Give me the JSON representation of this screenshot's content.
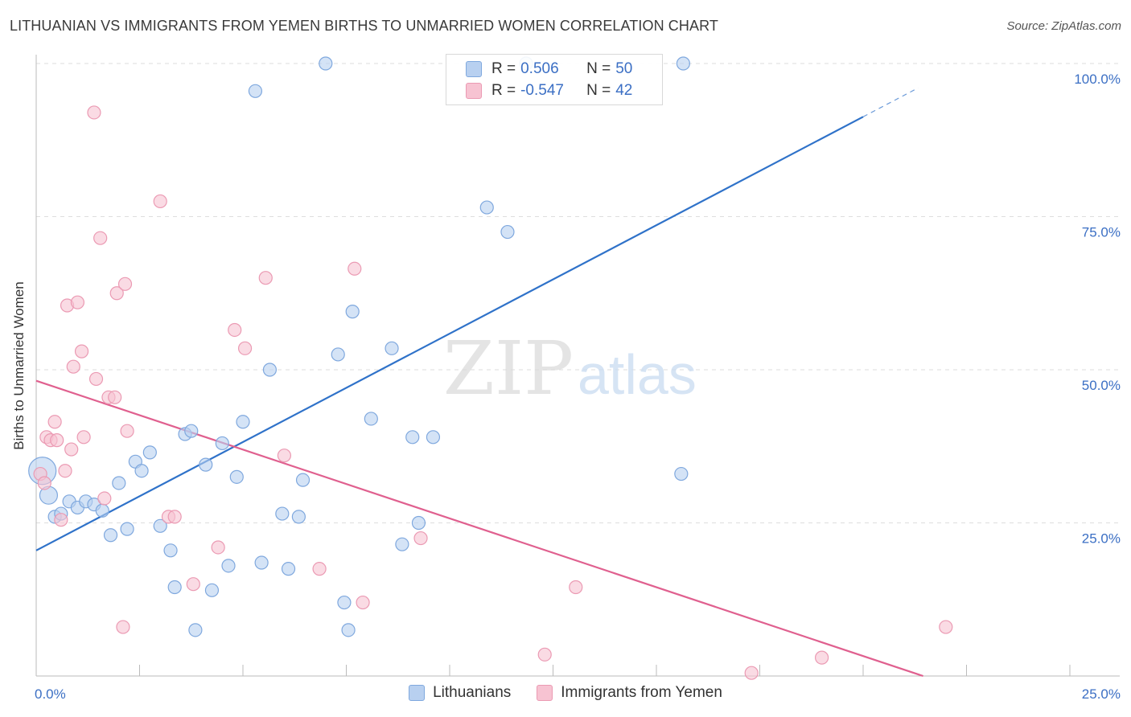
{
  "title": "LITHUANIAN VS IMMIGRANTS FROM YEMEN BIRTHS TO UNMARRIED WOMEN CORRELATION CHART",
  "source": "Source: ZipAtlas.com",
  "watermark": {
    "zip": "ZIP",
    "atlas": "atlas"
  },
  "legend_stats": {
    "r_label": "R =",
    "n_label": "N =",
    "rows": [
      {
        "r": "0.506",
        "n": "50"
      },
      {
        "r": "-0.547",
        "n": "42"
      }
    ]
  },
  "colors": {
    "blue_fill": "#b8d0f0",
    "blue_stroke": "#7fa8de",
    "blue_line": "#2f72c9",
    "pink_fill": "#f7c3d2",
    "pink_stroke": "#eb9ab3",
    "pink_line": "#e0608f",
    "axis_tick_text": "#3b6fc4",
    "grid": "#dedede"
  },
  "chart_data": {
    "type": "scatter",
    "title": "LITHUANIAN VS IMMIGRANTS FROM YEMEN BIRTHS TO UNMARRIED WOMEN CORRELATION CHART",
    "xlabel": "",
    "ylabel": "Births to Unmarried Women",
    "xlim": [
      0,
      25
    ],
    "ylim": [
      0,
      100
    ],
    "x_tick_labels": [
      "0.0%",
      "25.0%"
    ],
    "y_tick_labels": [
      "25.0%",
      "50.0%",
      "75.0%",
      "100.0%"
    ],
    "y_ticks": [
      25,
      50,
      75,
      100
    ],
    "grid": true,
    "legend_position": "bottom",
    "series": [
      {
        "name": "Lithuanians",
        "r": 0.506,
        "n": 50,
        "trend": {
          "x": [
            0,
            25
          ],
          "y": [
            20.5,
            109
          ],
          "solid_until_x": 20
        },
        "points": [
          {
            "x": 0.15,
            "y": 33.5,
            "big": true
          },
          {
            "x": 0.3,
            "y": 29.5,
            "big": true
          },
          {
            "x": 0.45,
            "y": 26.0
          },
          {
            "x": 0.6,
            "y": 26.5
          },
          {
            "x": 0.8,
            "y": 28.5
          },
          {
            "x": 1.0,
            "y": 27.5
          },
          {
            "x": 1.2,
            "y": 28.5
          },
          {
            "x": 1.4,
            "y": 28.0
          },
          {
            "x": 1.6,
            "y": 27.0
          },
          {
            "x": 1.8,
            "y": 23.0
          },
          {
            "x": 2.0,
            "y": 31.5
          },
          {
            "x": 2.2,
            "y": 24.0
          },
          {
            "x": 2.4,
            "y": 35.0
          },
          {
            "x": 2.55,
            "y": 33.5
          },
          {
            "x": 2.75,
            "y": 36.5
          },
          {
            "x": 3.0,
            "y": 24.5
          },
          {
            "x": 3.25,
            "y": 20.5
          },
          {
            "x": 3.35,
            "y": 14.5
          },
          {
            "x": 3.6,
            "y": 39.5
          },
          {
            "x": 3.75,
            "y": 40.0
          },
          {
            "x": 3.85,
            "y": 7.5
          },
          {
            "x": 4.1,
            "y": 34.5
          },
          {
            "x": 4.25,
            "y": 14.0
          },
          {
            "x": 4.5,
            "y": 38.0
          },
          {
            "x": 4.65,
            "y": 18.0
          },
          {
            "x": 4.85,
            "y": 32.5
          },
          {
            "x": 5.0,
            "y": 41.5
          },
          {
            "x": 5.3,
            "y": 95.5
          },
          {
            "x": 5.45,
            "y": 18.5
          },
          {
            "x": 5.65,
            "y": 50.0
          },
          {
            "x": 5.95,
            "y": 26.5
          },
          {
            "x": 6.1,
            "y": 17.5
          },
          {
            "x": 6.35,
            "y": 26.0
          },
          {
            "x": 6.45,
            "y": 32.0
          },
          {
            "x": 7.0,
            "y": 100.0
          },
          {
            "x": 7.3,
            "y": 52.5
          },
          {
            "x": 7.45,
            "y": 12.0
          },
          {
            "x": 7.55,
            "y": 7.5
          },
          {
            "x": 7.65,
            "y": 59.5
          },
          {
            "x": 8.1,
            "y": 42.0
          },
          {
            "x": 8.6,
            "y": 53.5
          },
          {
            "x": 8.85,
            "y": 21.5
          },
          {
            "x": 9.1,
            "y": 39.0
          },
          {
            "x": 9.25,
            "y": 25.0
          },
          {
            "x": 9.6,
            "y": 39.0
          },
          {
            "x": 10.9,
            "y": 76.5
          },
          {
            "x": 11.4,
            "y": 72.5
          },
          {
            "x": 11.85,
            "y": 100.0
          },
          {
            "x": 15.6,
            "y": 33.0
          },
          {
            "x": 15.65,
            "y": 100.0
          }
        ]
      },
      {
        "name": "Immigrants from Yemen",
        "r": -0.547,
        "n": 42,
        "trend": {
          "x": [
            0,
            21.45
          ],
          "y": [
            48.2,
            0
          ]
        },
        "points": [
          {
            "x": 0.1,
            "y": 33.0
          },
          {
            "x": 0.2,
            "y": 31.5
          },
          {
            "x": 0.25,
            "y": 39.0
          },
          {
            "x": 0.35,
            "y": 38.5
          },
          {
            "x": 0.45,
            "y": 41.5
          },
          {
            "x": 0.5,
            "y": 38.5
          },
          {
            "x": 0.6,
            "y": 25.5
          },
          {
            "x": 0.7,
            "y": 33.5
          },
          {
            "x": 0.75,
            "y": 60.5
          },
          {
            "x": 0.85,
            "y": 37.0
          },
          {
            "x": 0.9,
            "y": 50.5
          },
          {
            "x": 1.0,
            "y": 61.0
          },
          {
            "x": 1.1,
            "y": 53.0
          },
          {
            "x": 1.15,
            "y": 39.0
          },
          {
            "x": 1.4,
            "y": 92.0
          },
          {
            "x": 1.45,
            "y": 48.5
          },
          {
            "x": 1.55,
            "y": 71.5
          },
          {
            "x": 1.65,
            "y": 29.0
          },
          {
            "x": 1.75,
            "y": 45.5
          },
          {
            "x": 1.9,
            "y": 45.5
          },
          {
            "x": 1.95,
            "y": 62.5
          },
          {
            "x": 2.1,
            "y": 8.0
          },
          {
            "x": 2.15,
            "y": 64.0
          },
          {
            "x": 2.2,
            "y": 40.0
          },
          {
            "x": 3.0,
            "y": 77.5
          },
          {
            "x": 3.2,
            "y": 26.0
          },
          {
            "x": 3.35,
            "y": 26.0
          },
          {
            "x": 3.8,
            "y": 15.0
          },
          {
            "x": 4.4,
            "y": 21.0
          },
          {
            "x": 4.8,
            "y": 56.5
          },
          {
            "x": 5.05,
            "y": 53.5
          },
          {
            "x": 5.55,
            "y": 65.0
          },
          {
            "x": 6.0,
            "y": 36.0
          },
          {
            "x": 6.85,
            "y": 17.5
          },
          {
            "x": 7.7,
            "y": 66.5
          },
          {
            "x": 7.9,
            "y": 12.0
          },
          {
            "x": 9.3,
            "y": 22.5
          },
          {
            "x": 12.3,
            "y": 3.5
          },
          {
            "x": 13.05,
            "y": 14.5
          },
          {
            "x": 17.3,
            "y": 0.5
          },
          {
            "x": 19.0,
            "y": 3.0
          },
          {
            "x": 22.0,
            "y": 8.0
          }
        ]
      }
    ]
  }
}
